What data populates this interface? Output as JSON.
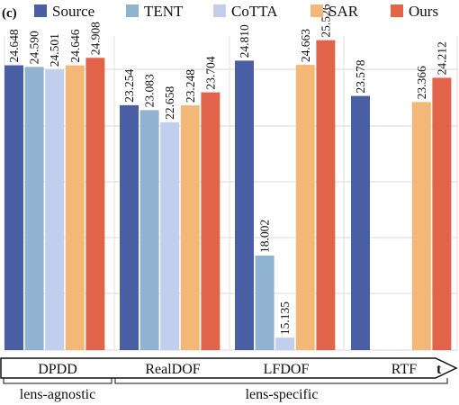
{
  "chart_data": {
    "type": "bar",
    "panel_label": "(c)",
    "categories": [
      "DPDD",
      "RealDOF",
      "LFDOF",
      "RTF"
    ],
    "series": [
      {
        "name": "Source",
        "color": "#4a5fa3",
        "values": [
          24.648,
          23.254,
          24.81,
          23.578
        ]
      },
      {
        "name": "TENT",
        "color": "#8fb3d1",
        "values": [
          24.59,
          23.083,
          18.002,
          null
        ]
      },
      {
        "name": "CoTTA",
        "color": "#c3cdec",
        "values": [
          24.501,
          22.658,
          15.135,
          null
        ]
      },
      {
        "name": "SAR",
        "color": "#f3b878",
        "values": [
          24.646,
          23.248,
          24.663,
          23.366
        ]
      },
      {
        "name": "Ours",
        "color": "#e0634a",
        "values": [
          24.908,
          23.704,
          25.526,
          24.212
        ]
      }
    ],
    "value_labels": [
      [
        "24.648",
        "24.590",
        "24.501",
        "24.646",
        "24.908"
      ],
      [
        "23.254",
        "23.083",
        "22.658",
        "23.248",
        "23.704"
      ],
      [
        "24.810",
        "18.002",
        "15.135",
        "24.663",
        "25.526"
      ],
      [
        "23.578",
        "",
        "",
        "23.366",
        "24.212"
      ]
    ],
    "ylim": [
      14.7,
      26.3
    ],
    "grid": true,
    "legend_position": "top",
    "x_axis_end_label": "t",
    "group_labels": [
      {
        "text": "lens-agnostic",
        "categories": [
          "DPDD"
        ]
      },
      {
        "text": "lens-specific",
        "categories": [
          "RealDOF",
          "LFDOF",
          "RTF"
        ]
      }
    ]
  }
}
